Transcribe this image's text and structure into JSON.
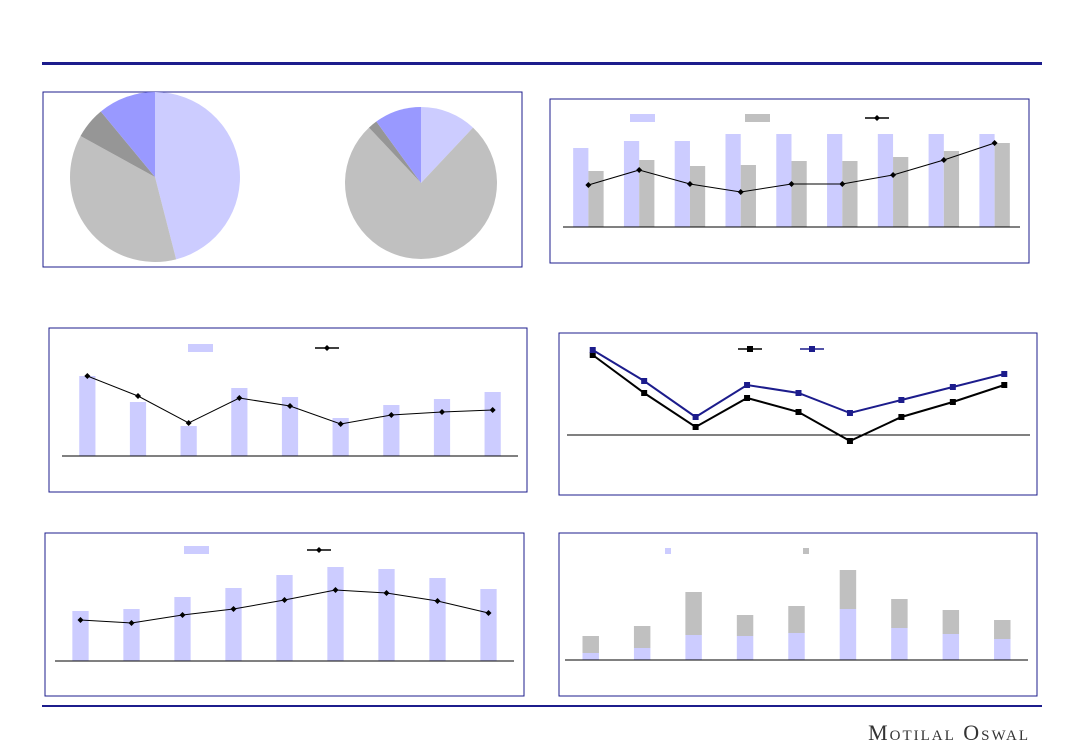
{
  "brand": "Motilal Oswal",
  "chart_data": [
    {
      "type": "pie",
      "values": [
        46,
        37,
        6,
        11
      ],
      "colors": [
        "#ccccff",
        "#c0c0c0",
        "#969696",
        "#9999ff"
      ]
    },
    {
      "type": "pie",
      "values": [
        12,
        76,
        2,
        10
      ],
      "colors": [
        "#ccccff",
        "#c0c0c0",
        "#969696",
        "#9999ff"
      ]
    },
    {
      "type": "bar",
      "categories": [
        null,
        null,
        null,
        null,
        null,
        null,
        null,
        null,
        null
      ],
      "ylim": [
        0,
        100
      ],
      "series": [
        {
          "kind": "bar",
          "color": "#ccccff",
          "values": [
            79,
            86,
            86,
            93,
            93,
            93,
            93,
            93,
            93
          ]
        },
        {
          "kind": "bar",
          "color": "#c0c0c0",
          "values": [
            56,
            67,
            61,
            62,
            66,
            66,
            70,
            76,
            84
          ]
        },
        {
          "kind": "line",
          "marker": "diamond",
          "color": "#000000",
          "values": [
            42,
            57,
            43,
            35,
            43,
            43,
            52,
            67,
            84
          ]
        }
      ]
    },
    {
      "type": "bar",
      "categories": [
        null,
        null,
        null,
        null,
        null,
        null,
        null,
        null,
        null
      ],
      "ylim": [
        0,
        100
      ],
      "series": [
        {
          "kind": "bar",
          "color": "#ccccff",
          "values": [
            80,
            54,
            30,
            68,
            59,
            38,
            51,
            57,
            64
          ]
        },
        {
          "kind": "line",
          "marker": "diamond",
          "color": "#000000",
          "values": [
            80,
            60,
            33,
            58,
            50,
            32,
            41,
            44,
            46
          ]
        }
      ]
    },
    {
      "type": "line",
      "categories": [
        null,
        null,
        null,
        null,
        null,
        null,
        null,
        null,
        null
      ],
      "ylim": [
        -20,
        90
      ],
      "series": [
        {
          "kind": "line",
          "marker": "square",
          "color": "#000000",
          "values": [
            80,
            42,
            8,
            37,
            23,
            -6,
            18,
            33,
            50
          ]
        },
        {
          "kind": "line",
          "marker": "square",
          "color": "#1c1c8c",
          "values": [
            85,
            54,
            18,
            50,
            42,
            22,
            35,
            48,
            61
          ]
        }
      ]
    },
    {
      "type": "bar",
      "categories": [
        null,
        null,
        null,
        null,
        null,
        null,
        null,
        null,
        null
      ],
      "ylim": [
        0,
        100
      ],
      "series": [
        {
          "kind": "bar",
          "color": "#ccccff",
          "values": [
            50,
            52,
            64,
            73,
            86,
            94,
            92,
            83,
            72
          ]
        },
        {
          "kind": "line",
          "marker": "diamond",
          "color": "#000000",
          "values": [
            41,
            38,
            46,
            52,
            61,
            71,
            68,
            60,
            48
          ]
        }
      ]
    },
    {
      "type": "bar",
      "stacked": true,
      "categories": [
        null,
        null,
        null,
        null,
        null,
        null,
        null,
        null,
        null
      ],
      "ylim": [
        0,
        100
      ],
      "series": [
        {
          "kind": "bar",
          "color": "#ccccff",
          "values": [
            7,
            12,
            25,
            24,
            27,
            51,
            32,
            26,
            21
          ]
        },
        {
          "kind": "bar",
          "color": "#c0c0c0",
          "values": [
            17,
            22,
            43,
            21,
            27,
            39,
            29,
            24,
            19
          ]
        }
      ]
    }
  ]
}
